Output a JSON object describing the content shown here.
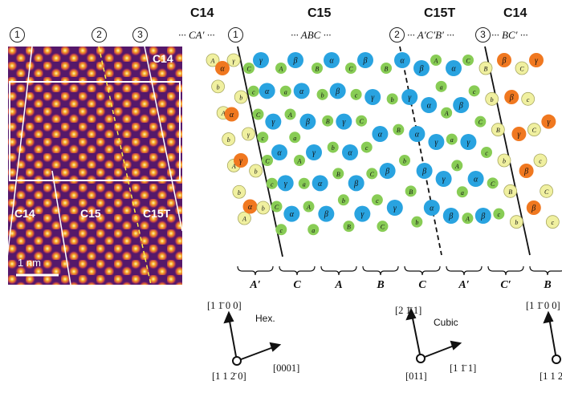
{
  "image": {
    "labels": [
      "C14",
      "C15",
      "C15T",
      "C14"
    ],
    "scale_bar": "1 nm"
  },
  "markers": [
    "1",
    "2",
    "3"
  ],
  "headers": [
    {
      "name": "C14",
      "seq": "··· CA′ ···"
    },
    {
      "name": "C15",
      "seq": "··· ABC ···"
    },
    {
      "name": "C15T",
      "seq": "··· A′C′B′ ···"
    },
    {
      "name": "C14",
      "seq": "··· BC′ ···"
    }
  ],
  "brackets": [
    "A′",
    "C",
    "A",
    "B",
    "C",
    "A′",
    "C′",
    "B"
  ],
  "hex_axes": {
    "title": "Hex.",
    "up": "[1 1̄ 0 0]",
    "right": "[0001]",
    "center": "[1 1 2̄ 0]"
  },
  "cubic_axes": {
    "title": "Cubic",
    "up": "[2 1̄ 1]",
    "right": "[1 1̄ 1]",
    "center": "[011]"
  },
  "right_axes": {
    "up": "[1 1̄ 0 0]",
    "center": "[1 1 2̄"
  },
  "atom_colors": {
    "yellow": "#f0f0a0",
    "green": "#88cc55",
    "blue": "#29a3e0",
    "orange": "#f07820"
  }
}
